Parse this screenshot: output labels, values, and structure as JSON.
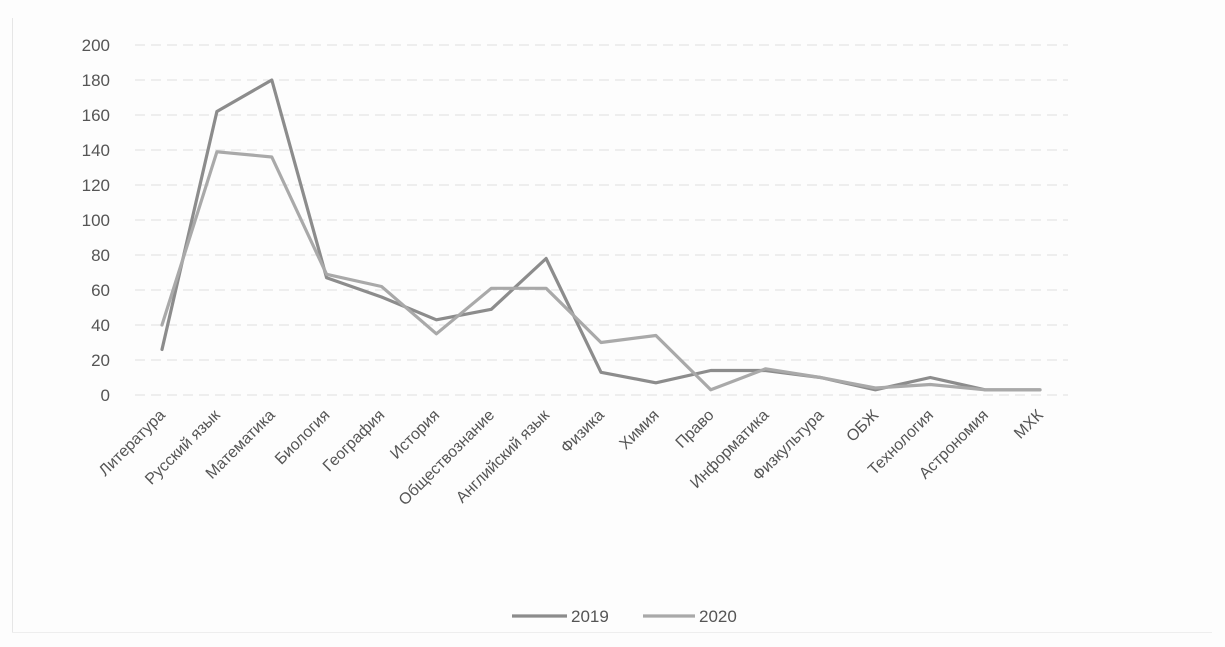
{
  "chart_data": {
    "type": "line",
    "title": "",
    "xlabel": "",
    "ylabel": "",
    "ylim": [
      0,
      200
    ],
    "yticks": [
      "0",
      "20",
      "40",
      "60",
      "80",
      "100",
      "120",
      "140",
      "160",
      "180",
      "200"
    ],
    "grid": "horizontal",
    "legend_position": "bottom",
    "categories": [
      "Литература",
      "Русский язык",
      "Математика",
      "Биология",
      "География",
      "История",
      "Обществознание",
      "Английский язык",
      "Физика",
      "Химия",
      "Право",
      "Информатика",
      "Физкультура",
      "ОБЖ",
      "Технология",
      "Астрономия",
      "МХК"
    ],
    "series": [
      {
        "name": "2019",
        "color": "#8c8c8c",
        "values": [
          26,
          162,
          180,
          67,
          56,
          43,
          49,
          78,
          13,
          7,
          14,
          14,
          10,
          3,
          10,
          3,
          3
        ]
      },
      {
        "name": "2020",
        "color": "#a9a9a9",
        "values": [
          40,
          139,
          136,
          69,
          62,
          35,
          61,
          61,
          30,
          34,
          3,
          15,
          10,
          4,
          6,
          3,
          3
        ]
      }
    ]
  }
}
